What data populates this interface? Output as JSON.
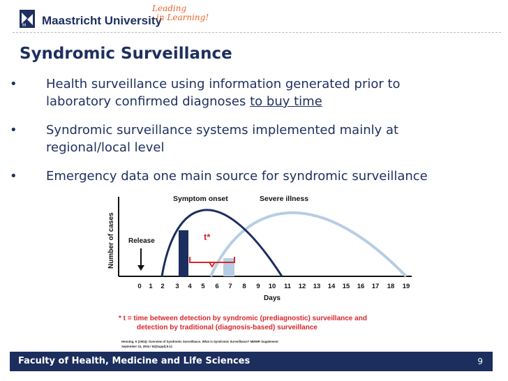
{
  "header": {
    "university_name": "Maastricht University",
    "tagline_line1": "Leading",
    "tagline_line2": "in Learning!"
  },
  "title": "Syndromic Surveillance",
  "bullets": [
    {
      "marker": "•",
      "line1": "Health surveillance using information generated prior to",
      "line2_prefix": "laboratory confirmed diagnoses ",
      "line2_underlined": "to buy time"
    },
    {
      "marker": "•",
      "line1": "Syndromic surveillance systems implemented mainly at",
      "line2": "regional/local level"
    },
    {
      "marker": "•",
      "line1": "Emergency data one main source for syndromic surveillance"
    }
  ],
  "figure": {
    "label_symptom_onset": "Symptom onset",
    "label_severe_illness": "Severe illness",
    "label_release": "Release",
    "label_t": "t*",
    "y_axis_label": "Number of cases",
    "x_axis_label": "Days",
    "x_ticks": [
      "0",
      "1",
      "2",
      "3",
      "4",
      "5",
      "6",
      "7",
      "8",
      "9",
      "10",
      "11",
      "12",
      "13",
      "14",
      "15",
      "16",
      "17",
      "18",
      "19"
    ],
    "footnote_line1": "* t =  time between detection by syndromic (prediagnostic) surveillance and",
    "footnote_line2": "detection by traditional (diagnosis-based) surveillance",
    "citation_line1": "Henning, K (2004): Overview of Syndromic Surveillance. What is Syndromic Surveillance? MMWR Supplement",
    "citation_line2": "September 24, 2004 / 53(Suppl);5-11",
    "colors": {
      "dark_curve": "#1c2e5e",
      "light_curve": "#b7cde3",
      "bracket": "#d9262b",
      "footnote": "#d9262b"
    }
  },
  "footer": {
    "label": "Faculty of Health, Medicine and Life Sciences",
    "page_number": "9"
  }
}
